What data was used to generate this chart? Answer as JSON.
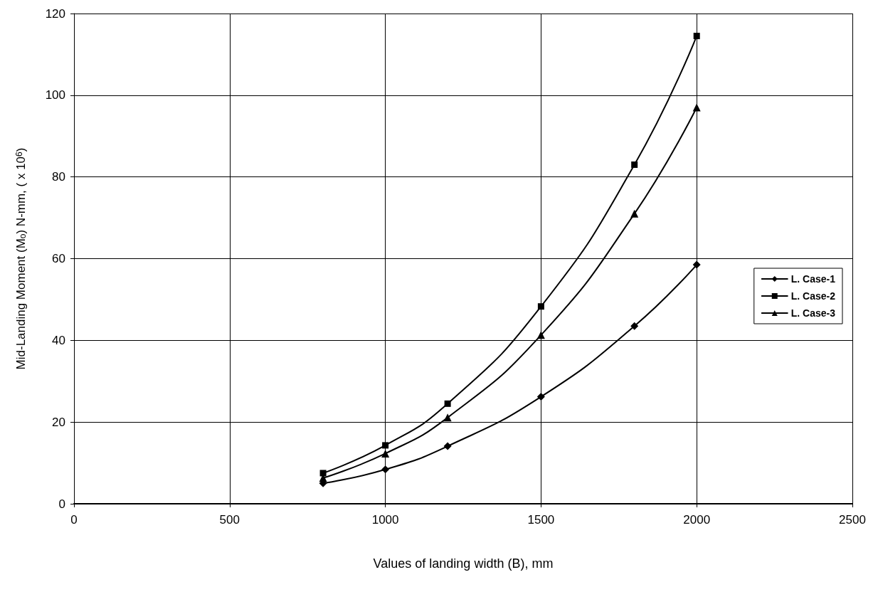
{
  "chart_data": {
    "type": "line",
    "xlabel": "Values of landing width (B), mm",
    "ylabel": "Mid-Landing Moment (M$_{o}$) N-mm, ( x 10$^{6}$)",
    "x": [
      800,
      1000,
      1200,
      1500,
      1800,
      2000
    ],
    "series": [
      {
        "name": "L. Case-1",
        "color": "#000000",
        "marker": "diamond",
        "values": [
          5,
          8.4,
          14.1,
          26.2,
          43.5,
          58.5
        ]
      },
      {
        "name": "L. Case-2",
        "color": "#000000",
        "marker": "square",
        "values": [
          7.5,
          14.3,
          24.5,
          48.3,
          83,
          114.5
        ]
      },
      {
        "name": "L. Case-3",
        "color": "#000000",
        "marker": "triangle",
        "values": [
          6.3,
          12.3,
          21.1,
          41.3,
          71,
          97
        ]
      }
    ],
    "xlim": [
      0,
      2500
    ],
    "xticks": [
      0,
      500,
      1000,
      1500,
      2000,
      2500
    ],
    "ylim": [
      0,
      120
    ],
    "yticks": [
      0,
      20,
      40,
      60,
      80,
      100,
      120
    ],
    "grid": true,
    "legend": "right",
    "line_style": "solid"
  }
}
